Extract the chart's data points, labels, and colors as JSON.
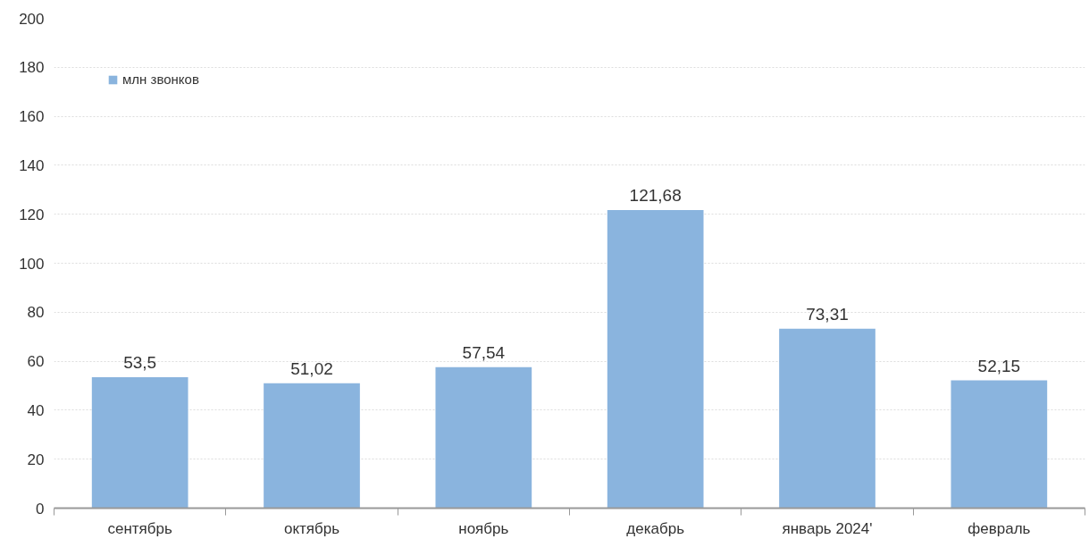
{
  "chart_data": {
    "type": "bar",
    "categories": [
      "сентябрь",
      "октябрь",
      "ноябрь",
      "декабрь",
      "январь 2024'",
      "февраль"
    ],
    "series": [
      {
        "name": "млн звонков",
        "color": "#8ab4de",
        "values": [
          53.5,
          51.02,
          57.54,
          121.68,
          73.31,
          52.15
        ],
        "value_labels": [
          "53,5",
          "51,02",
          "57,54",
          "121,68",
          "73,31",
          "52,15"
        ]
      }
    ],
    "ylim": [
      0,
      200
    ],
    "yticks": [
      0,
      20,
      40,
      60,
      80,
      100,
      120,
      140,
      160,
      180,
      200
    ],
    "grid": "y",
    "legend": "top left"
  }
}
